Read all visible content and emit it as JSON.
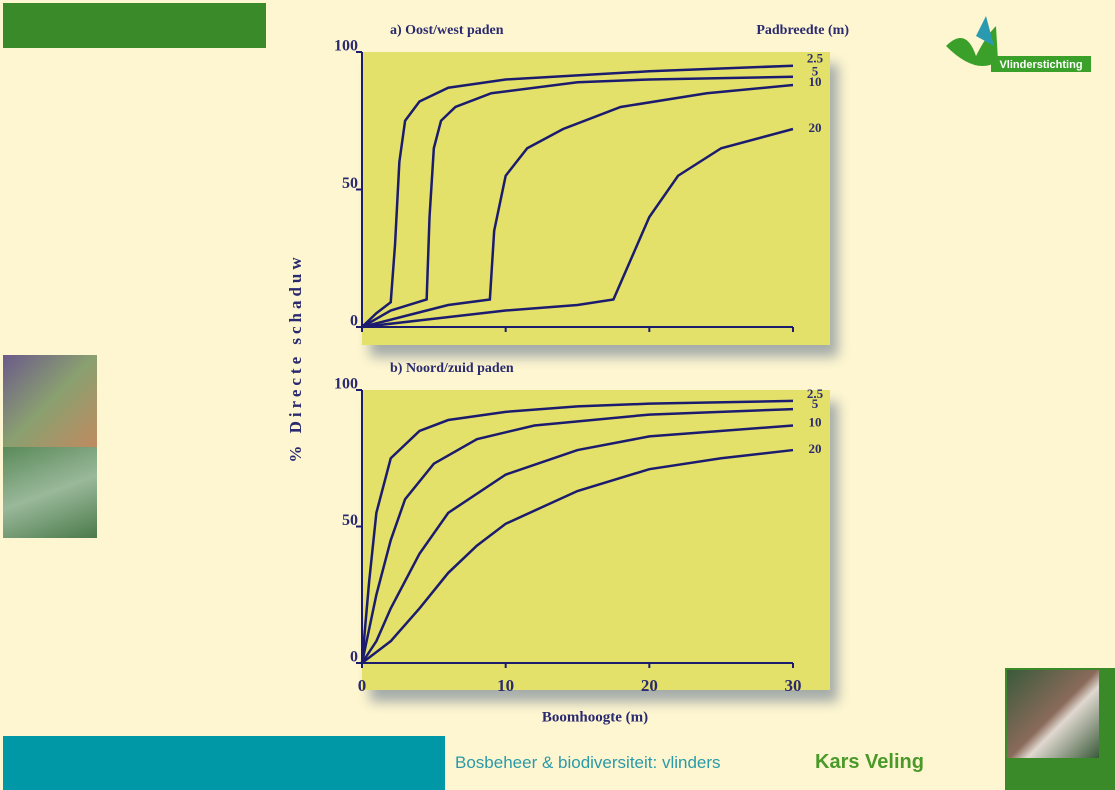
{
  "slide": {
    "footer_text": "Bosbeheer & biodiversiteit: vlinders",
    "author": "Kars Veling",
    "logo_text": "Vlinderstichting"
  },
  "chart_data": [
    {
      "type": "line",
      "title": "a) Oost/west paden",
      "legend_title": "Padbreedte (m)",
      "ylabel": "% Directe schaduw",
      "xlim": [
        0,
        30
      ],
      "ylim": [
        0,
        100
      ],
      "xticks": [
        0,
        10,
        20,
        30
      ],
      "yticks": [
        0,
        50,
        100
      ],
      "color": "#1c1c6e",
      "series": [
        {
          "name": "2.5",
          "x": [
            0,
            1,
            2,
            2.3,
            2.6,
            3,
            4,
            6,
            10,
            20,
            30
          ],
          "values": [
            0,
            5,
            9,
            30,
            60,
            75,
            82,
            87,
            90,
            93,
            95
          ]
        },
        {
          "name": "5",
          "x": [
            0,
            2,
            4.5,
            4.7,
            5,
            5.5,
            6.5,
            9,
            15,
            20,
            30
          ],
          "values": [
            0,
            6,
            10,
            40,
            65,
            75,
            80,
            85,
            89,
            90,
            91
          ]
        },
        {
          "name": "10",
          "x": [
            0,
            3,
            6,
            8.9,
            9.2,
            10,
            11.5,
            14,
            18,
            24,
            30
          ],
          "values": [
            0,
            4,
            8,
            10,
            35,
            55,
            65,
            72,
            80,
            85,
            88
          ]
        },
        {
          "name": "20",
          "x": [
            0,
            5,
            10,
            15,
            17.5,
            18.5,
            20,
            22,
            25,
            30
          ],
          "values": [
            0,
            3,
            6,
            8,
            10,
            22,
            40,
            55,
            65,
            72
          ]
        }
      ]
    },
    {
      "type": "line",
      "title": "b) Noord/zuid paden",
      "xlabel": "Boomhoogte (m)",
      "xlim": [
        0,
        30
      ],
      "ylim": [
        0,
        100
      ],
      "xticks": [
        0,
        10,
        20,
        30
      ],
      "yticks": [
        0,
        50,
        100
      ],
      "color": "#1c1c6e",
      "series": [
        {
          "name": "2.5",
          "x": [
            0,
            0.5,
            1,
            2,
            4,
            6,
            10,
            15,
            20,
            30
          ],
          "values": [
            0,
            30,
            55,
            75,
            85,
            89,
            92,
            94,
            95,
            96
          ]
        },
        {
          "name": "5",
          "x": [
            0,
            1,
            2,
            3,
            5,
            8,
            12,
            20,
            30
          ],
          "values": [
            0,
            25,
            45,
            60,
            73,
            82,
            87,
            91,
            93
          ]
        },
        {
          "name": "10",
          "x": [
            0,
            1,
            2,
            4,
            6,
            10,
            15,
            20,
            30
          ],
          "values": [
            0,
            8,
            20,
            40,
            55,
            69,
            78,
            83,
            87
          ]
        },
        {
          "name": "20",
          "x": [
            0,
            2,
            4,
            6,
            8,
            10,
            15,
            20,
            25,
            30
          ],
          "values": [
            0,
            8,
            20,
            33,
            43,
            51,
            63,
            71,
            75,
            78
          ]
        }
      ]
    }
  ]
}
